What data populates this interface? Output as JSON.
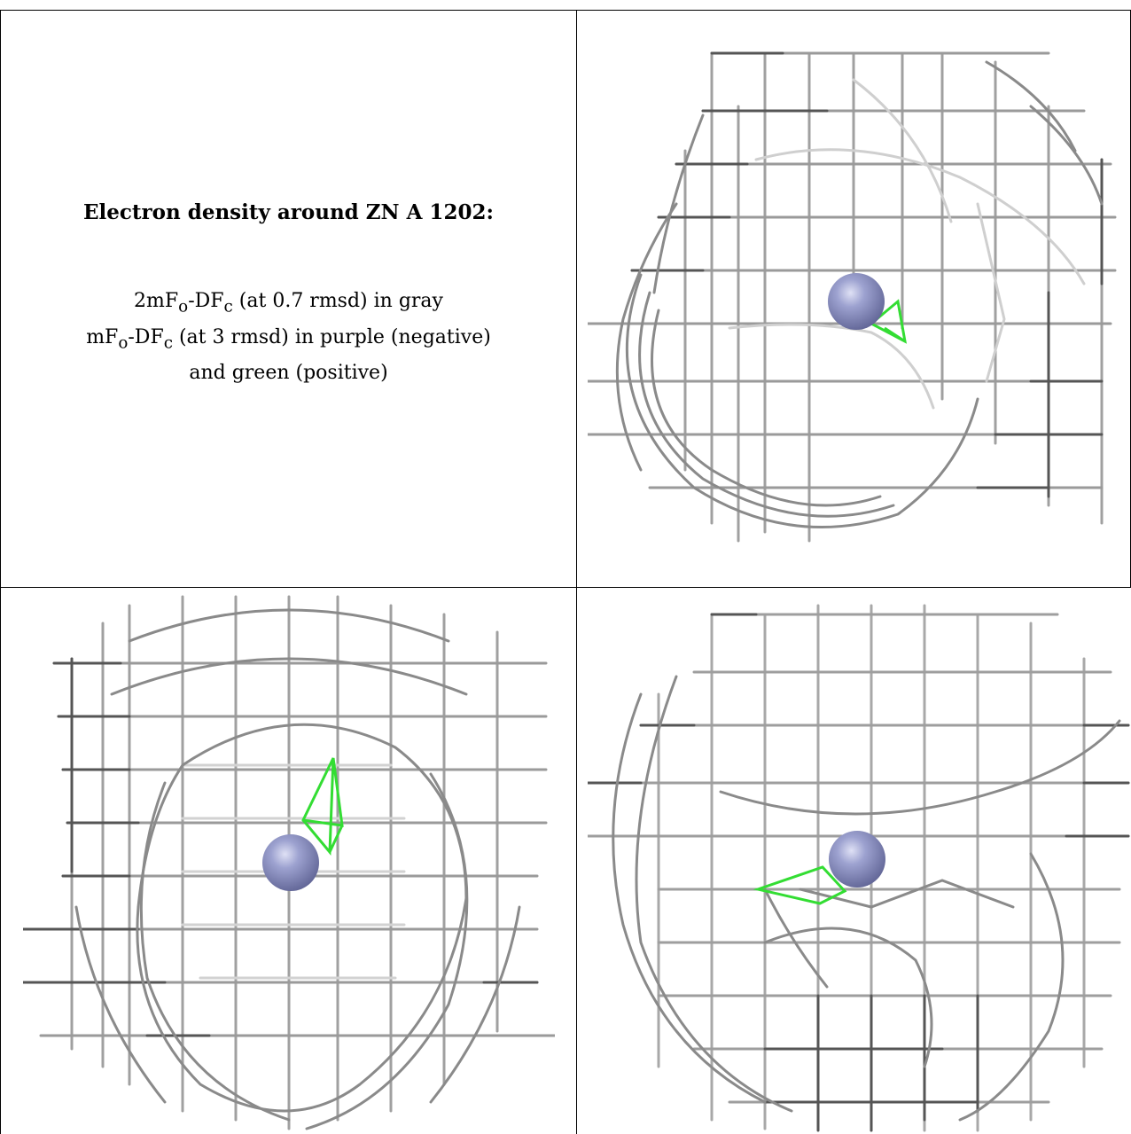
{
  "title": "Electron density around ZN A 1202:",
  "legend": [
    {
      "main1": "2mF",
      "sub1": "o",
      "main2": "-DF",
      "sub2": "c",
      "rest": " (at 0.7 rmsd) in gray"
    },
    {
      "main1": "mF",
      "sub1": "o",
      "main2": "-DF",
      "sub2": "c",
      "rest": " (at 3 rmsd) in purple (negative)"
    },
    {
      "rest": "and green (positive)"
    }
  ],
  "colors": {
    "mesh_dark": "#555555",
    "mesh_mid": "#9a9a9a",
    "mesh_light": "#d0d0d0",
    "positive": "#33dd33",
    "zinc": "#8a8fbf"
  },
  "icons": [
    "zinc-atom-icon",
    "positive-density-icon"
  ]
}
